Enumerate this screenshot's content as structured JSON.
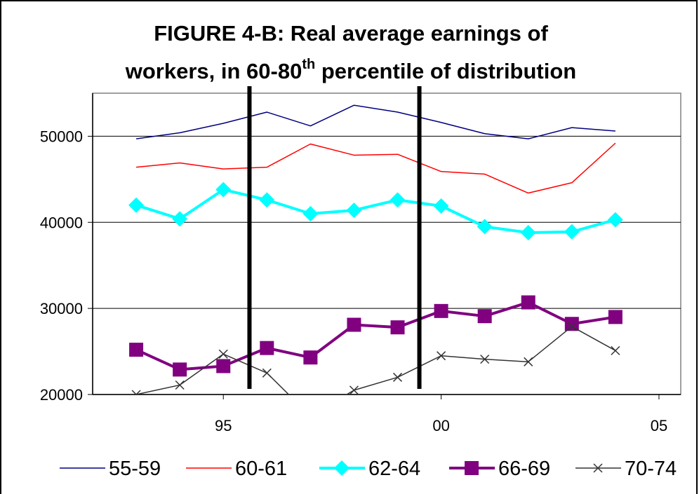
{
  "chart_data": {
    "type": "line",
    "title": {
      "line1": "FIGURE 4-B:  Real average earnings of",
      "line2": [
        "workers, in 60-80",
        "th",
        " percentile of distribution"
      ]
    },
    "x": [
      1993,
      1994,
      1995,
      1996,
      1997,
      1998,
      1999,
      2000,
      2001,
      2002,
      2003,
      2004
    ],
    "series": [
      {
        "name": "55-59",
        "color": "#000080",
        "marker": "none",
        "line_width": 1.5,
        "values": [
          49700,
          50400,
          51500,
          52800,
          51200,
          53600,
          52800,
          51600,
          50300,
          49700,
          51000,
          50600
        ]
      },
      {
        "name": "60-61",
        "color": "#ff0000",
        "marker": "none",
        "line_width": 1.5,
        "values": [
          46400,
          46900,
          46200,
          46400,
          49100,
          47800,
          47900,
          45900,
          45600,
          43400,
          44600,
          49200
        ]
      },
      {
        "name": "62-64",
        "color": "#00ffff",
        "marker": "diamond",
        "line_width": 4,
        "values": [
          42000,
          40400,
          43800,
          42600,
          41000,
          41400,
          42600,
          41900,
          39500,
          38800,
          38900,
          40300
        ]
      },
      {
        "name": "66-69",
        "color": "#800080",
        "marker": "square",
        "line_width": 4,
        "values": [
          25200,
          22900,
          23300,
          25400,
          24300,
          28100,
          27800,
          29700,
          29100,
          30700,
          28200,
          29000
        ]
      },
      {
        "name": "70-74",
        "color": "#333333",
        "marker": "x",
        "line_width": 1.5,
        "values": [
          20000,
          21100,
          24700,
          22500,
          17500,
          20500,
          22000,
          24500,
          24100,
          23800,
          27900,
          25100
        ]
      }
    ],
    "xlim": [
      1992,
      2005.5
    ],
    "xticks": [
      {
        "value": 1995,
        "label": "95"
      },
      {
        "value": 2000,
        "label": "00"
      },
      {
        "value": 2005,
        "label": "05"
      }
    ],
    "ylim": [
      20000,
      55000
    ],
    "yticks": [
      20000,
      30000,
      40000,
      50000
    ],
    "grid": true,
    "vlines": [
      1995.6,
      1999.5
    ],
    "legend": "bottom"
  }
}
